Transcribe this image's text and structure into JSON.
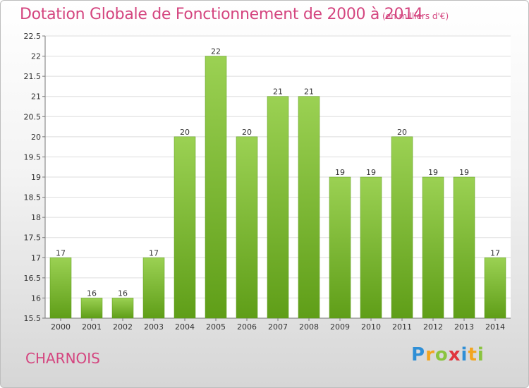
{
  "chart_data": {
    "type": "bar",
    "title": "Dotation Globale de Fonctionnement de 2000 à 2014",
    "subtitle": "(en milliers d'€)",
    "categories": [
      "2000",
      "2001",
      "2002",
      "2003",
      "2004",
      "2005",
      "2006",
      "2007",
      "2008",
      "2009",
      "2010",
      "2011",
      "2012",
      "2013",
      "2014"
    ],
    "values": [
      17,
      16,
      16,
      17,
      20,
      22,
      20,
      21,
      21,
      19,
      19,
      20,
      19,
      19,
      17
    ],
    "data_labels": [
      "17",
      "16",
      "16",
      "17",
      "20",
      "22",
      "20",
      "21",
      "21",
      "19",
      "19",
      "20",
      "19",
      "19",
      "17"
    ],
    "ylim": [
      15.5,
      22.5
    ],
    "yticks": [
      15.5,
      16,
      16.5,
      17,
      17.5,
      18,
      18.5,
      19,
      19.5,
      20,
      20.5,
      21,
      21.5,
      22,
      22.5
    ],
    "ytick_labels": [
      "15.5",
      "16",
      "16.5",
      "17",
      "17.5",
      "18",
      "18.5",
      "19",
      "19.5",
      "20",
      "20.5",
      "21",
      "21.5",
      "22",
      "22.5"
    ],
    "xlabel": "",
    "ylabel": "",
    "grid": true,
    "bar_color": "#7cc134"
  },
  "footer": {
    "commune": "CHARNOIS"
  },
  "logo": {
    "letters": [
      "P",
      "r",
      "o",
      "x",
      "i",
      "t",
      "i"
    ],
    "colors": [
      "#2f8fd6",
      "#f2a51f",
      "#8ac43f",
      "#e0353d",
      "#2f8fd6",
      "#f2a51f",
      "#8ac43f"
    ]
  },
  "colors": {
    "title": "#d4457f",
    "bar": "#7cc134"
  }
}
